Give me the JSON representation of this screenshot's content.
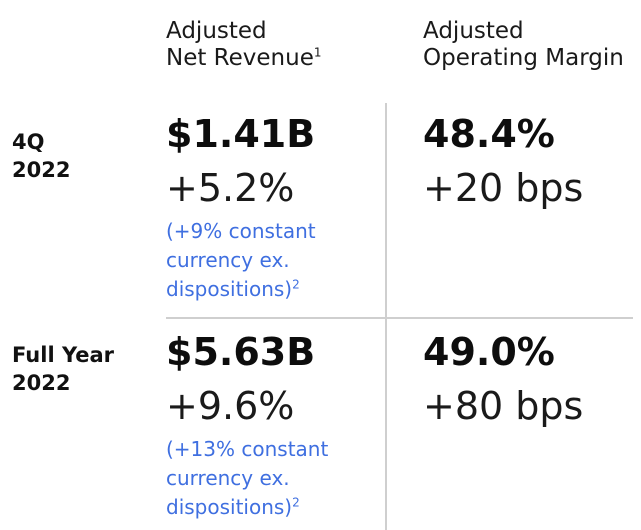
{
  "headers": {
    "revenue_line1": "Adjusted",
    "revenue_line2": "Net Revenue",
    "revenue_sup": "1",
    "margin_line1": "Adjusted",
    "margin_line2": "Operating Margin"
  },
  "rows": [
    {
      "label_line1": "4Q",
      "label_line2": "2022",
      "revenue": "$1.41B",
      "revenue_growth": "+5.2%",
      "note_line1": "(+9% constant",
      "note_line2": "currency ex.",
      "note_line3": "dispositions)",
      "note_sup": "2",
      "margin": "48.4%",
      "margin_change": "+20 bps"
    },
    {
      "label_line1": "Full Year",
      "label_line2": "2022",
      "revenue": "$5.63B",
      "revenue_growth": "+9.6%",
      "note_line1": "(+13% constant",
      "note_line2": "currency ex.",
      "note_line3": "dispositions)",
      "note_sup": "2",
      "margin": "49.0%",
      "margin_change": "+80 bps"
    }
  ],
  "colors": {
    "note_text": "#3f6fe0",
    "divider": "#cfcfcf"
  }
}
